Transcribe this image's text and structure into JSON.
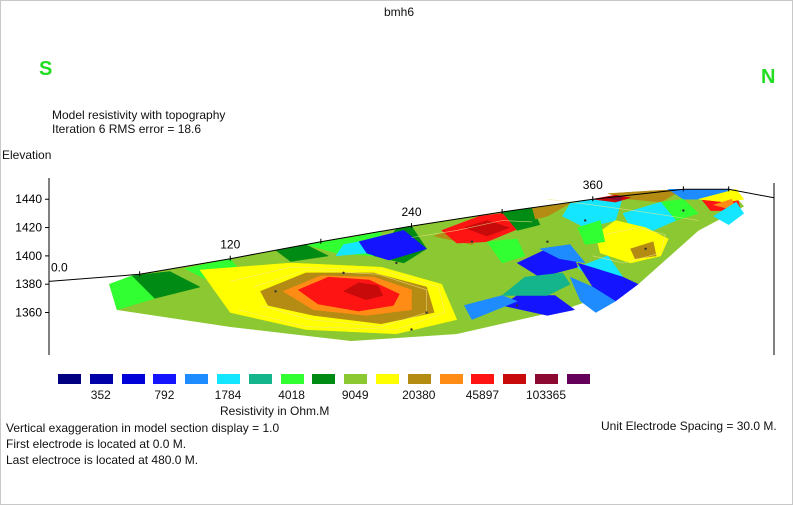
{
  "title": "bmh6",
  "direction": {
    "left": "S",
    "right": "N",
    "color": "#22dd22"
  },
  "subtitle": {
    "line1": "Model resistivity with topography",
    "line2": "Iteration 6 RMS error = 18.6"
  },
  "footer": {
    "vertical_exaggeration": "Vertical exaggeration in model section display = 1.0",
    "first_electrode": "First electrode is located at  0.0  M.",
    "last_electrode": "Last electroce is located at 480.0 M.",
    "unit_spacing": "Unit Electrode Spacing = 30.0 M."
  },
  "chart_data": {
    "type": "heatmap",
    "title": "bmh6",
    "ylabel": "Elevation",
    "x_ticks": [
      "0.0",
      "120",
      "240",
      "360"
    ],
    "y_ticks": [
      "1440",
      "1420",
      "1400",
      "1380",
      "1360"
    ],
    "x_tick_values": [
      0,
      120,
      240,
      360
    ],
    "y_tick_values": [
      1440,
      1420,
      1400,
      1380,
      1360
    ],
    "xlim": [
      0,
      480
    ],
    "ylim": [
      1330,
      1455
    ],
    "topography": [
      {
        "x": 0,
        "y": 1382
      },
      {
        "x": 60,
        "y": 1387
      },
      {
        "x": 120,
        "y": 1398
      },
      {
        "x": 180,
        "y": 1410
      },
      {
        "x": 240,
        "y": 1421
      },
      {
        "x": 300,
        "y": 1431
      },
      {
        "x": 360,
        "y": 1440
      },
      {
        "x": 420,
        "y": 1447
      },
      {
        "x": 450,
        "y": 1447
      },
      {
        "x": 480,
        "y": 1441
      }
    ],
    "colorbar": {
      "title": "Resistivity in Ohm.M",
      "labels": [
        "352",
        "792",
        "1784",
        "4018",
        "9049",
        "20380",
        "45897",
        "103365"
      ],
      "colors": [
        "#000080",
        "#0000a8",
        "#0000d8",
        "#1414ff",
        "#1e8cff",
        "#14e6ff",
        "#14b48c",
        "#32ff32",
        "#008c14",
        "#8cc832",
        "#ffff00",
        "#b48c14",
        "#ff8c14",
        "#ff1414",
        "#c80a0a",
        "#8c0a32",
        "#64005a"
      ]
    },
    "regions": [
      {
        "level": 9,
        "pts": [
          [
            40,
            1380
          ],
          [
            60,
            1387
          ],
          [
            120,
            1398
          ],
          [
            180,
            1410
          ],
          [
            240,
            1421
          ],
          [
            300,
            1431
          ],
          [
            360,
            1440
          ],
          [
            400,
            1445
          ],
          [
            450,
            1447
          ],
          [
            460,
            1435
          ],
          [
            430,
            1418
          ],
          [
            390,
            1380
          ],
          [
            340,
            1362
          ],
          [
            270,
            1345
          ],
          [
            200,
            1340
          ],
          [
            120,
            1350
          ],
          [
            45,
            1362
          ]
        ]
      },
      {
        "level": 7,
        "pts": [
          [
            40,
            1380
          ],
          [
            55,
            1386
          ],
          [
            70,
            1370
          ],
          [
            45,
            1362
          ]
        ]
      },
      {
        "level": 8,
        "pts": [
          [
            55,
            1386
          ],
          [
            80,
            1389
          ],
          [
            100,
            1378
          ],
          [
            70,
            1370
          ]
        ]
      },
      {
        "level": 7,
        "pts": [
          [
            90,
            1391
          ],
          [
            120,
            1398
          ],
          [
            130,
            1385
          ],
          [
            105,
            1383
          ]
        ]
      },
      {
        "level": 8,
        "pts": [
          [
            150,
            1404
          ],
          [
            170,
            1408
          ],
          [
            185,
            1400
          ],
          [
            160,
            1396
          ]
        ]
      },
      {
        "level": 7,
        "pts": [
          [
            170,
            1408
          ],
          [
            180,
            1410
          ],
          [
            200,
            1413
          ],
          [
            220,
            1417
          ],
          [
            215,
            1400
          ],
          [
            190,
            1402
          ]
        ]
      },
      {
        "level": 8,
        "pts": [
          [
            215,
            1400
          ],
          [
            230,
            1419
          ],
          [
            240,
            1421
          ],
          [
            250,
            1405
          ],
          [
            235,
            1395
          ]
        ]
      },
      {
        "level": 3,
        "pts": [
          [
            205,
            1410
          ],
          [
            235,
            1418
          ],
          [
            250,
            1405
          ],
          [
            225,
            1397
          ],
          [
            210,
            1402
          ]
        ]
      },
      {
        "level": 5,
        "pts": [
          [
            205,
            1410
          ],
          [
            210,
            1402
          ],
          [
            190,
            1400
          ],
          [
            195,
            1408
          ]
        ]
      },
      {
        "level": 11,
        "pts": [
          [
            255,
            1414
          ],
          [
            285,
            1428
          ],
          [
            295,
            1420
          ],
          [
            280,
            1408
          ]
        ]
      },
      {
        "level": 13,
        "pts": [
          [
            260,
            1418
          ],
          [
            285,
            1428
          ],
          [
            300,
            1430
          ],
          [
            315,
            1421
          ],
          [
            290,
            1410
          ],
          [
            270,
            1409
          ]
        ]
      },
      {
        "level": 14,
        "pts": [
          [
            275,
            1420
          ],
          [
            290,
            1425
          ],
          [
            305,
            1420
          ],
          [
            290,
            1414
          ]
        ]
      },
      {
        "level": 8,
        "pts": [
          [
            300,
            1431
          ],
          [
            320,
            1434
          ],
          [
            325,
            1422
          ],
          [
            310,
            1418
          ]
        ]
      },
      {
        "level": 11,
        "pts": [
          [
            320,
            1434
          ],
          [
            345,
            1437
          ],
          [
            330,
            1428
          ],
          [
            322,
            1426
          ]
        ]
      },
      {
        "level": 5,
        "pts": [
          [
            345,
            1437
          ],
          [
            360,
            1440
          ],
          [
            380,
            1442
          ],
          [
            375,
            1425
          ],
          [
            355,
            1420
          ],
          [
            340,
            1428
          ]
        ]
      },
      {
        "level": 11,
        "pts": [
          [
            370,
            1444
          ],
          [
            400,
            1446
          ],
          [
            420,
            1447
          ],
          [
            405,
            1438
          ],
          [
            385,
            1440
          ]
        ]
      },
      {
        "level": 14,
        "pts": [
          [
            360,
            1440
          ],
          [
            375,
            1443
          ],
          [
            385,
            1441
          ],
          [
            375,
            1438
          ]
        ]
      },
      {
        "level": 15,
        "pts": [
          [
            368,
            1441
          ],
          [
            380,
            1442
          ],
          [
            378,
            1439
          ]
        ]
      },
      {
        "level": 4,
        "pts": [
          [
            410,
            1447
          ],
          [
            450,
            1447
          ],
          [
            445,
            1440
          ],
          [
            420,
            1440
          ]
        ]
      },
      {
        "level": 7,
        "pts": [
          [
            405,
            1438
          ],
          [
            420,
            1440
          ],
          [
            430,
            1430
          ],
          [
            415,
            1425
          ]
        ]
      },
      {
        "level": 5,
        "pts": [
          [
            380,
            1430
          ],
          [
            405,
            1438
          ],
          [
            415,
            1425
          ],
          [
            400,
            1418
          ],
          [
            385,
            1420
          ]
        ]
      },
      {
        "level": 10,
        "pts": [
          [
            375,
            1425
          ],
          [
            395,
            1420
          ],
          [
            410,
            1412
          ],
          [
            405,
            1400
          ],
          [
            385,
            1395
          ],
          [
            365,
            1402
          ],
          [
            362,
            1415
          ]
        ]
      },
      {
        "level": 11,
        "pts": [
          [
            385,
            1405
          ],
          [
            400,
            1410
          ],
          [
            402,
            1400
          ],
          [
            388,
            1398
          ]
        ]
      },
      {
        "level": 13,
        "pts": [
          [
            432,
            1440
          ],
          [
            455,
            1445
          ],
          [
            458,
            1432
          ],
          [
            438,
            1432
          ]
        ]
      },
      {
        "level": 10,
        "pts": [
          [
            430,
            1440
          ],
          [
            455,
            1447
          ],
          [
            460,
            1440
          ],
          [
            448,
            1438
          ]
        ]
      },
      {
        "level": 12,
        "pts": [
          [
            440,
            1436
          ],
          [
            452,
            1440
          ],
          [
            455,
            1432
          ]
        ]
      },
      {
        "level": 5,
        "pts": [
          [
            455,
            1438
          ],
          [
            460,
            1430
          ],
          [
            450,
            1422
          ],
          [
            440,
            1428
          ]
        ]
      },
      {
        "level": 3,
        "pts": [
          [
            310,
            1395
          ],
          [
            330,
            1405
          ],
          [
            345,
            1408
          ],
          [
            350,
            1392
          ],
          [
            325,
            1385
          ]
        ]
      },
      {
        "level": 4,
        "pts": [
          [
            325,
            1405
          ],
          [
            345,
            1408
          ],
          [
            355,
            1395
          ],
          [
            338,
            1398
          ]
        ]
      },
      {
        "level": 5,
        "pts": [
          [
            350,
            1392
          ],
          [
            370,
            1400
          ],
          [
            380,
            1385
          ],
          [
            365,
            1378
          ]
        ]
      },
      {
        "level": 3,
        "pts": [
          [
            350,
            1395
          ],
          [
            360,
            1378
          ],
          [
            375,
            1368
          ],
          [
            390,
            1380
          ],
          [
            380,
            1385
          ],
          [
            365,
            1390
          ]
        ]
      },
      {
        "level": 4,
        "pts": [
          [
            345,
            1385
          ],
          [
            352,
            1368
          ],
          [
            362,
            1360
          ],
          [
            375,
            1368
          ],
          [
            360,
            1378
          ]
        ]
      },
      {
        "level": 3,
        "pts": [
          [
            300,
            1365
          ],
          [
            330,
            1358
          ],
          [
            348,
            1362
          ],
          [
            335,
            1372
          ],
          [
            310,
            1372
          ]
        ]
      },
      {
        "level": 6,
        "pts": [
          [
            300,
            1372
          ],
          [
            330,
            1372
          ],
          [
            345,
            1380
          ],
          [
            340,
            1388
          ],
          [
            315,
            1385
          ]
        ]
      },
      {
        "level": 4,
        "pts": [
          [
            280,
            1355
          ],
          [
            310,
            1368
          ],
          [
            300,
            1372
          ],
          [
            275,
            1365
          ]
        ]
      },
      {
        "level": 7,
        "pts": [
          [
            290,
            1410
          ],
          [
            310,
            1412
          ],
          [
            315,
            1400
          ],
          [
            300,
            1395
          ]
        ]
      },
      {
        "level": 7,
        "pts": [
          [
            350,
            1420
          ],
          [
            365,
            1425
          ],
          [
            368,
            1410
          ],
          [
            355,
            1408
          ]
        ]
      },
      {
        "level": 10,
        "pts": [
          [
            100,
            1390
          ],
          [
            160,
            1395
          ],
          [
            220,
            1392
          ],
          [
            260,
            1380
          ],
          [
            270,
            1355
          ],
          [
            230,
            1345
          ],
          [
            170,
            1348
          ],
          [
            120,
            1360
          ],
          [
            110,
            1375
          ]
        ]
      },
      {
        "level": 11,
        "pts": [
          [
            140,
            1375
          ],
          [
            170,
            1388
          ],
          [
            215,
            1388
          ],
          [
            250,
            1378
          ],
          [
            255,
            1360
          ],
          [
            220,
            1352
          ],
          [
            175,
            1358
          ],
          [
            145,
            1365
          ]
        ]
      },
      {
        "level": 12,
        "pts": [
          [
            155,
            1375
          ],
          [
            180,
            1386
          ],
          [
            215,
            1385
          ],
          [
            240,
            1376
          ],
          [
            240,
            1362
          ],
          [
            210,
            1358
          ],
          [
            175,
            1362
          ]
        ]
      },
      {
        "level": 13,
        "pts": [
          [
            165,
            1376
          ],
          [
            185,
            1385
          ],
          [
            212,
            1383
          ],
          [
            232,
            1373
          ],
          [
            228,
            1365
          ],
          [
            205,
            1361
          ],
          [
            178,
            1366
          ]
        ]
      },
      {
        "level": 14,
        "pts": [
          [
            195,
            1375
          ],
          [
            205,
            1381
          ],
          [
            218,
            1379
          ],
          [
            221,
            1372
          ],
          [
            210,
            1369
          ]
        ]
      }
    ],
    "points": [
      {
        "x": 150,
        "y": 1375
      },
      {
        "x": 195,
        "y": 1388
      },
      {
        "x": 250,
        "y": 1360
      },
      {
        "x": 310,
        "y": 1365
      },
      {
        "x": 330,
        "y": 1410
      },
      {
        "x": 355,
        "y": 1425
      },
      {
        "x": 395,
        "y": 1405
      },
      {
        "x": 280,
        "y": 1410
      },
      {
        "x": 230,
        "y": 1395
      },
      {
        "x": 420,
        "y": 1432
      },
      {
        "x": 240,
        "y": 1348
      }
    ],
    "contours": [
      [
        [
          120,
          1382
        ],
        [
          160,
          1392
        ],
        [
          220,
          1390
        ],
        [
          258,
          1378
        ],
        [
          262,
          1360
        ],
        [
          230,
          1348
        ],
        [
          170,
          1350
        ],
        [
          125,
          1362
        ]
      ],
      [
        [
          135,
          1378
        ],
        [
          170,
          1390
        ],
        [
          218,
          1387
        ],
        [
          250,
          1376
        ],
        [
          250,
          1360
        ],
        [
          220,
          1350
        ],
        [
          172,
          1355
        ],
        [
          140,
          1365
        ]
      ],
      [
        [
          360,
          1400
        ],
        [
          380,
          1395
        ],
        [
          405,
          1402
        ],
        [
          408,
          1415
        ],
        [
          390,
          1420
        ],
        [
          368,
          1415
        ]
      ],
      [
        [
          330,
          1440
        ],
        [
          360,
          1436
        ],
        [
          400,
          1430
        ],
        [
          430,
          1425
        ]
      ],
      [
        [
          240,
          1413
        ],
        [
          270,
          1418
        ],
        [
          300,
          1425
        ],
        [
          320,
          1424
        ]
      ]
    ]
  }
}
